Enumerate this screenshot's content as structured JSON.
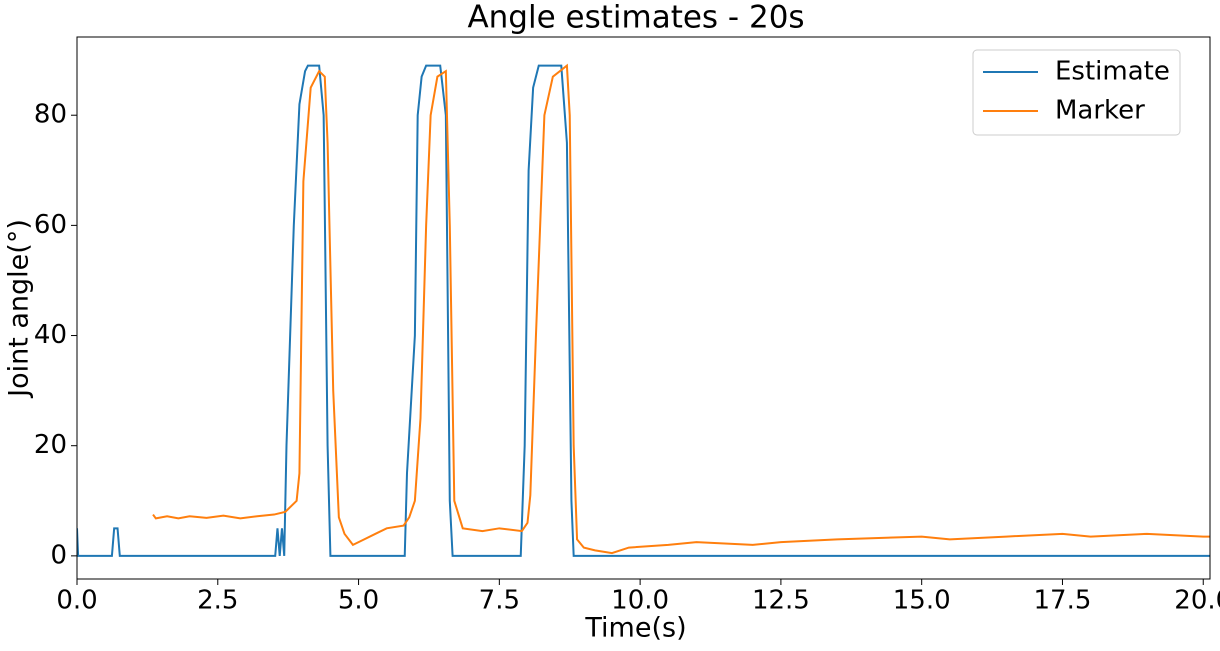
{
  "chart_data": {
    "type": "line",
    "title": "Angle estimates - 20s",
    "xlabel": "Time(s)",
    "ylabel": "Joint angle(°)",
    "xlim": [
      0,
      20.12
    ],
    "ylim": [
      -4.2,
      94.2
    ],
    "xticks": [
      {
        "value": 0,
        "label": "0.0"
      },
      2.5,
      {
        "value": 5,
        "label": "5.0"
      },
      7.5,
      {
        "value": 10,
        "label": "10.0"
      },
      12.5,
      {
        "value": 15,
        "label": "15.0"
      },
      17.5,
      {
        "value": 20,
        "label": "20.0"
      }
    ],
    "yticks": [
      0,
      20,
      40,
      60,
      80
    ],
    "legend": "upper right",
    "series": [
      {
        "name": "Estimate",
        "color": "#1f77b4",
        "x": [
          0.0,
          0.02,
          0.62,
          0.66,
          0.72,
          0.76,
          3.52,
          3.56,
          3.6,
          3.64,
          3.68,
          3.72,
          3.85,
          3.95,
          4.05,
          4.1,
          4.3,
          4.38,
          4.45,
          4.5,
          5.82,
          5.86,
          6.0,
          6.05,
          6.12,
          6.2,
          6.45,
          6.55,
          6.62,
          6.67,
          7.88,
          7.95,
          8.02,
          8.1,
          8.2,
          8.6,
          8.7,
          8.78,
          8.82,
          20.12
        ],
        "values": [
          5,
          0,
          0,
          5,
          5,
          0,
          0,
          5,
          0,
          5,
          0,
          20,
          60,
          82,
          88,
          89,
          89,
          80,
          20,
          0,
          0,
          15,
          40,
          80,
          87,
          89,
          89,
          80,
          10,
          0,
          0,
          20,
          70,
          85,
          89,
          89,
          75,
          10,
          0,
          0
        ]
      },
      {
        "name": "Marker",
        "color": "#ff7f0e",
        "x": [
          1.35,
          1.4,
          1.6,
          1.8,
          2.0,
          2.3,
          2.6,
          2.9,
          3.2,
          3.5,
          3.7,
          3.9,
          3.95,
          4.02,
          4.15,
          4.3,
          4.4,
          4.45,
          4.55,
          4.65,
          4.75,
          4.9,
          5.1,
          5.3,
          5.5,
          5.8,
          5.9,
          6.0,
          6.1,
          6.2,
          6.28,
          6.4,
          6.55,
          6.62,
          6.7,
          6.85,
          7.2,
          7.5,
          7.9,
          8.0,
          8.05,
          8.15,
          8.3,
          8.45,
          8.7,
          8.75,
          8.82,
          8.88,
          9.0,
          9.2,
          9.5,
          9.8,
          10.5,
          11,
          12,
          12.5,
          13.5,
          15,
          15.5,
          16.5,
          17.5,
          18,
          19,
          20,
          20.12
        ],
        "values": [
          7.5,
          6.8,
          7.2,
          6.8,
          7.2,
          6.9,
          7.3,
          6.8,
          7.2,
          7.5,
          8,
          10,
          15,
          68,
          85,
          88,
          87,
          75,
          30,
          7,
          4,
          2,
          3,
          4,
          5,
          5.5,
          7,
          10,
          25,
          60,
          80,
          87,
          88,
          60,
          10,
          5,
          4.5,
          5,
          4.5,
          6,
          11,
          40,
          80,
          87,
          89,
          80,
          20,
          3,
          1.5,
          1,
          0.5,
          1.5,
          2,
          2.5,
          2,
          2.5,
          3,
          3.5,
          3,
          3.5,
          4,
          3.5,
          4,
          3.5,
          3.5
        ]
      }
    ]
  }
}
